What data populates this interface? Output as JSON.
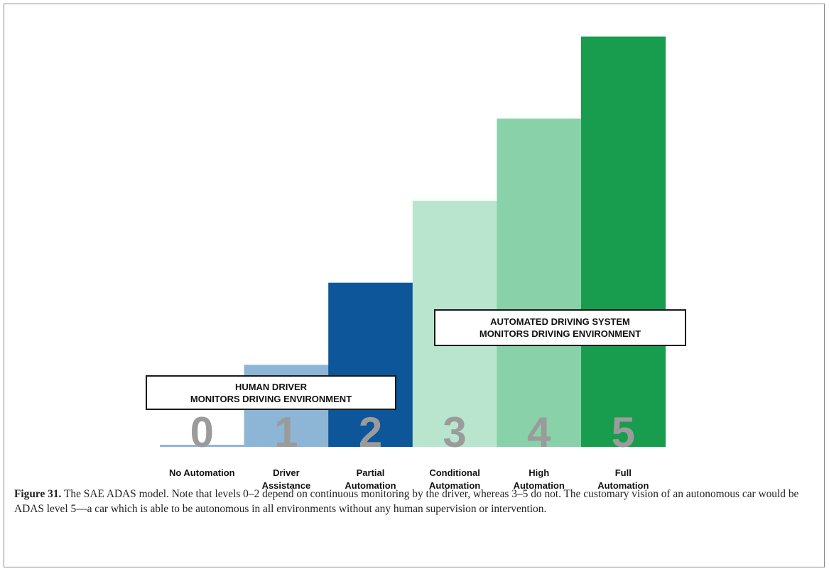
{
  "chart_data": {
    "type": "bar",
    "categories": [
      "0",
      "1",
      "2",
      "3",
      "4",
      "5"
    ],
    "category_names": [
      [
        "No Automation"
      ],
      [
        "Driver",
        "Assistance"
      ],
      [
        "Partial",
        "Automation"
      ],
      [
        "Conditional",
        "Automation"
      ],
      [
        "High",
        "Automation"
      ],
      [
        "Full",
        "Automation"
      ]
    ],
    "values": [
      0,
      1,
      2,
      3,
      4,
      5
    ],
    "ylim": [
      0,
      5.1
    ],
    "colors": [
      "#8fb6d6",
      "#8db5d5",
      "#0c5699",
      "#b9e5cf",
      "#89d1a9",
      "#189d4e"
    ],
    "numeral_color": "#9b9b9b",
    "annotations": [
      {
        "id": "human",
        "text": "HUMAN DRIVER\nMONITORS DRIVING ENVIRONMENT"
      },
      {
        "id": "ads",
        "text": "AUTOMATED DRIVING SYSTEM\nMONITORS DRIVING ENVIRONMENT"
      }
    ]
  },
  "caption": {
    "label": "Figure 31.",
    "text": "The SAE ADAS model. Note that levels 0–2 depend on continuous monitoring by the driver, whereas 3–5 do not. The customary vision of an autonomous car would be ADAS level 5—a car which is able to be autonomous in all environments without any human supervision or intervention."
  }
}
